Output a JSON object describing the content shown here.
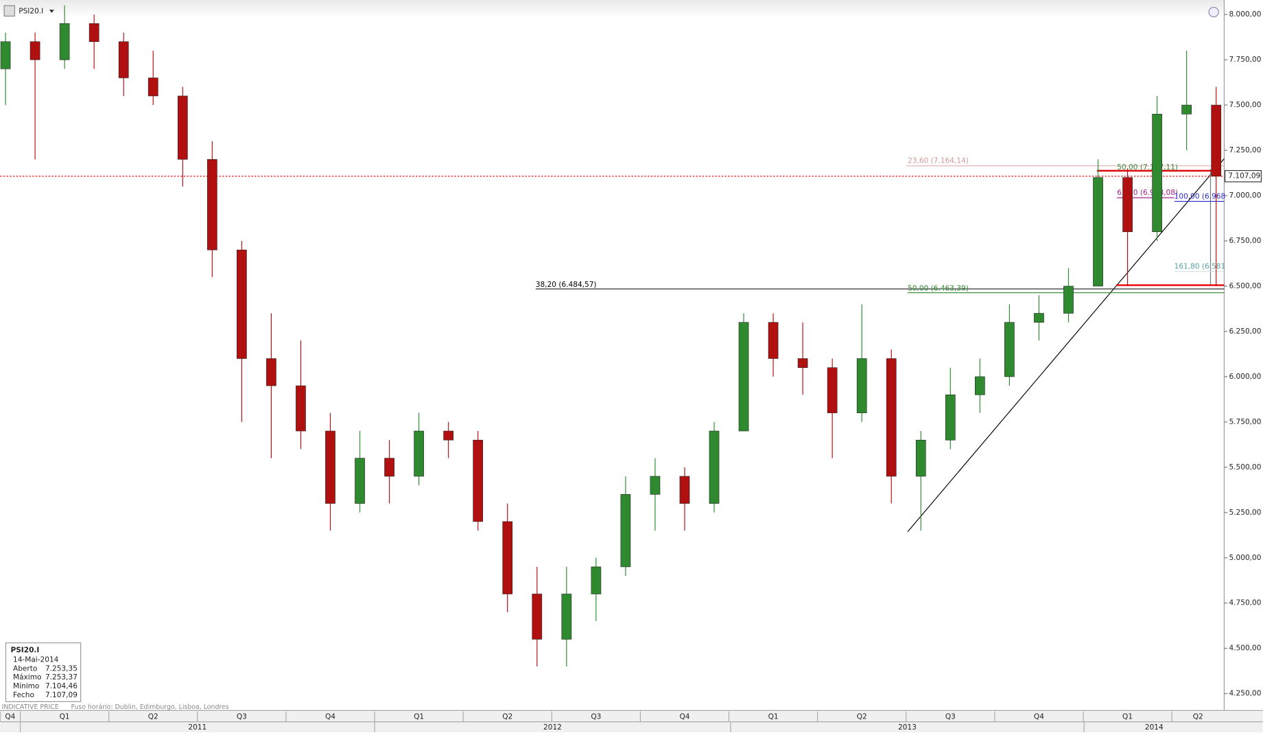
{
  "chart_data": {
    "type": "candlestick",
    "series": [
      {
        "name": "PSI20.I",
        "up_color": "#2f8a2f",
        "down_color": "#b01010",
        "open": [
          7700,
          7850,
          7750,
          7950,
          7850,
          7650,
          7550,
          7200,
          6700,
          6100,
          5950,
          5700,
          5300,
          5550,
          5450,
          5700,
          5650,
          5200,
          4800,
          4550,
          4800,
          4950,
          5350,
          5450,
          5300,
          5700,
          6300,
          6100,
          6050,
          5800,
          6100,
          5450,
          5650,
          5900,
          6000,
          6300,
          6350,
          6500,
          7100,
          6800,
          7450,
          7500
        ],
        "high": [
          7900,
          7900,
          8050,
          8000,
          7900,
          7800,
          7600,
          7300,
          6750,
          6350,
          6200,
          5800,
          5700,
          5650,
          5800,
          5750,
          5700,
          5300,
          4950,
          4950,
          5000,
          5450,
          5550,
          5500,
          5750,
          6350,
          6350,
          6300,
          6100,
          6400,
          6150,
          5700,
          6050,
          6100,
          6400,
          6450,
          6600,
          7200,
          7150,
          7550,
          7800,
          7600
        ],
        "low": [
          7500,
          7200,
          7700,
          7700,
          7550,
          7500,
          7050,
          6550,
          5750,
          5550,
          5600,
          5150,
          5250,
          5300,
          5400,
          5550,
          5150,
          4700,
          4400,
          4400,
          4650,
          4900,
          5150,
          5150,
          5250,
          5700,
          6000,
          5900,
          5550,
          5750,
          5300,
          5150,
          5600,
          5800,
          5950,
          6200,
          6300,
          6500,
          6500,
          6750,
          7250,
          6500
        ],
        "close": [
          7850,
          7750,
          7950,
          7850,
          7650,
          7550,
          7200,
          6700,
          6100,
          5950,
          5700,
          5300,
          5550,
          5450,
          5700,
          5650,
          5200,
          4800,
          4550,
          4800,
          4950,
          5350,
          5450,
          5300,
          5700,
          6300,
          6100,
          6050,
          5800,
          6100,
          5450,
          5650,
          5900,
          6000,
          6300,
          6350,
          6500,
          7100,
          6800,
          7450,
          7500,
          7107.09
        ]
      }
    ],
    "ylim": [
      4170,
      8080
    ],
    "yticks": [
      {
        "value": 4250,
        "label": "4.250,00"
      },
      {
        "value": 4500,
        "label": "4.500,00"
      },
      {
        "value": 4750,
        "label": "4.750,00"
      },
      {
        "value": 5000,
        "label": "5.000,00"
      },
      {
        "value": 5250,
        "label": "5.250,00"
      },
      {
        "value": 5500,
        "label": "5.500,00"
      },
      {
        "value": 5750,
        "label": "5.750,00"
      },
      {
        "value": 6000,
        "label": "6.000,00"
      },
      {
        "value": 6250,
        "label": "6.250,00"
      },
      {
        "value": 6500,
        "label": "6.500,00"
      },
      {
        "value": 6750,
        "label": "6.750,00"
      },
      {
        "value": 7000,
        "label": "7.000,00"
      },
      {
        "value": 7250,
        "label": "7.250,00"
      },
      {
        "value": 7500,
        "label": "7.500,00"
      },
      {
        "value": 7750,
        "label": "7.750,00"
      },
      {
        "value": 8000,
        "label": "8.000,00"
      }
    ],
    "quarters": [
      "Q4",
      "Q1",
      "Q2",
      "Q3",
      "Q4",
      "Q1",
      "Q2",
      "Q3",
      "Q4",
      "Q1",
      "Q2",
      "Q3",
      "Q4",
      "Q1",
      "Q2"
    ],
    "years": [
      "2011",
      "2012",
      "2013",
      "2014"
    ],
    "last_price": {
      "value": 7107.09,
      "label": "7.107,09"
    },
    "levels": [
      {
        "label": "23,60 (7.164,14)",
        "value": 7164.14,
        "color": "#d09a9a",
        "line_color": "#e0b0b0"
      },
      {
        "label": "50,00 (7.137,11)",
        "value": 7137.11,
        "color": "#3a8a3a",
        "line_color": "#e00000"
      },
      {
        "label": "61,80 (6.988,08)",
        "value": 6988.08,
        "color": "#a0208a",
        "line_color": "#a0208a"
      },
      {
        "label": "100,00 (6.968",
        "value": 6968,
        "color": "#2a2ad0",
        "line_color": "#2a2ad0"
      },
      {
        "label": "161,80 (6.581",
        "value": 6581,
        "color": "#5aa0a0",
        "line_color": "#cfe3e3"
      },
      {
        "label": "38,20 (6.484,57)",
        "value": 6484.57,
        "color": "#000000",
        "line_color": "#333333"
      },
      {
        "label": "50,00 (6.463,39)",
        "value": 6463.39,
        "color": "#2f8a2f",
        "line_color": "#2f8a2f"
      }
    ]
  },
  "info": {
    "symbol": "PSI20.I",
    "date": "14-Mai-2014",
    "rows": [
      [
        "Aberto",
        "7.253,35"
      ],
      [
        "Máximo",
        "7.253,37"
      ],
      [
        "Mínimo",
        "7.104,46"
      ],
      [
        "Fecho",
        "7.107,09"
      ]
    ]
  },
  "footer": {
    "price_type": "INDICATIVE PRICE",
    "timezone": "Fuso horário: Dublin, Edimburgo, Lisboa, Londres"
  }
}
